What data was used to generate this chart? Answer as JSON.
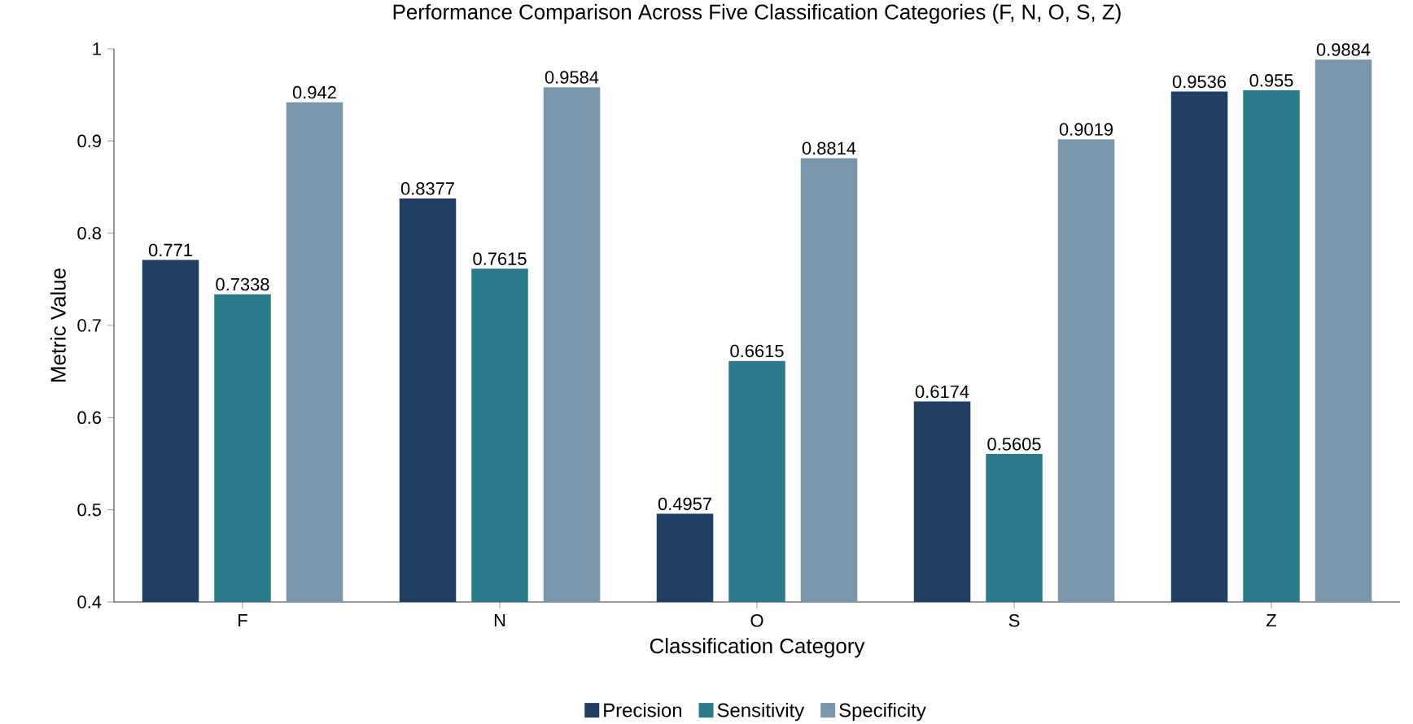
{
  "chart_data": {
    "type": "bar",
    "title": "Performance Comparison Across Five Classification Categories (F, N, O, S, Z)",
    "xlabel": "Classification Category",
    "ylabel": "Metric Value",
    "categories": [
      "F",
      "N",
      "O",
      "S",
      "Z"
    ],
    "series": [
      {
        "name": "Precision",
        "color": "#1f3f63",
        "values": [
          0.771,
          0.8377,
          0.4957,
          0.6174,
          0.9536
        ]
      },
      {
        "name": "Sensitivity",
        "color": "#2b7a8b",
        "values": [
          0.7338,
          0.7615,
          0.6615,
          0.5605,
          0.955
        ]
      },
      {
        "name": "Specificity",
        "color": "#7a96ab",
        "values": [
          0.942,
          0.9584,
          0.8814,
          0.9019,
          0.9884
        ]
      }
    ],
    "ylim": [
      0.4,
      1.0
    ],
    "yticks": [
      0.4,
      0.5,
      0.6,
      0.7,
      0.8,
      0.9,
      1
    ],
    "grid": false,
    "legend": "bottom",
    "data_labels": true
  }
}
